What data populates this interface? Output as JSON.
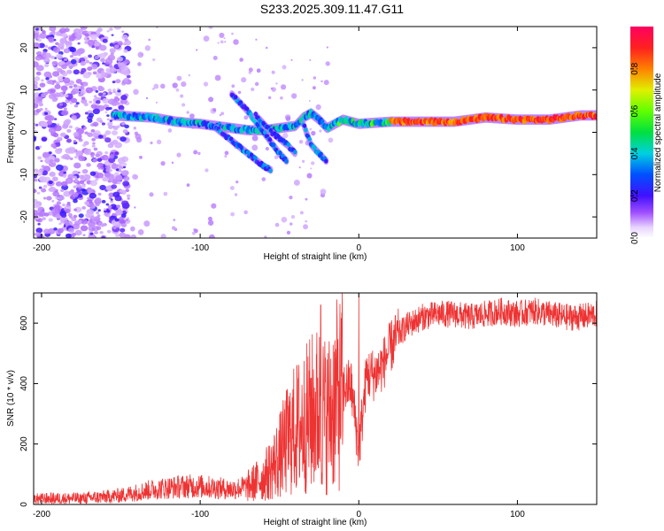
{
  "title": "S233.2025.309.11.47.G11",
  "chart_data": [
    {
      "type": "heatmap",
      "title": "S233.2025.309.11.47.G11",
      "xlabel": "Height of straight line (km)",
      "ylabel": "Frequency (Hz)",
      "xlim": [
        -205,
        150
      ],
      "ylim": [
        -25,
        25
      ],
      "xticks": [
        -200,
        -100,
        0,
        100
      ],
      "yticks": [
        -20,
        -10,
        0,
        10,
        20
      ],
      "colorbar": {
        "label": "Normalized spectral amplitude",
        "range": [
          0,
          1
        ],
        "ticks": [
          0.0,
          0.2,
          0.4,
          0.6,
          0.8
        ]
      },
      "ridges": [
        {
          "name": "main-tone",
          "points": [
            [
              -155,
              4
            ],
            [
              -130,
              3.5
            ],
            [
              -115,
              2.5
            ],
            [
              -100,
              2
            ],
            [
              -90,
              1.5
            ],
            [
              -80,
              1
            ],
            [
              -70,
              0.5
            ],
            [
              -60,
              0.5
            ],
            [
              -50,
              1
            ],
            [
              -40,
              1.5
            ],
            [
              -35,
              3.5
            ],
            [
              -30,
              4.5
            ],
            [
              -25,
              3
            ],
            [
              -20,
              1
            ],
            [
              -15,
              2
            ],
            [
              -10,
              3
            ],
            [
              0,
              2
            ],
            [
              20,
              2.5
            ],
            [
              40,
              2.5
            ],
            [
              60,
              2.5
            ],
            [
              80,
              3.5
            ],
            [
              100,
              3
            ],
            [
              120,
              3
            ],
            [
              140,
              4
            ],
            [
              150,
              4
            ]
          ]
        },
        {
          "name": "drift-1",
          "points": [
            [
              -90,
              1
            ],
            [
              -80,
              -2
            ],
            [
              -70,
              -5
            ],
            [
              -60,
              -8
            ],
            [
              -55,
              -9
            ]
          ]
        },
        {
          "name": "drift-2",
          "points": [
            [
              -80,
              9
            ],
            [
              -70,
              5
            ],
            [
              -60,
              0
            ],
            [
              -50,
              -5
            ],
            [
              -45,
              -7
            ]
          ]
        },
        {
          "name": "drift-3",
          "points": [
            [
              -65,
              4
            ],
            [
              -55,
              0
            ],
            [
              -45,
              -3
            ],
            [
              -40,
              -5
            ]
          ]
        },
        {
          "name": "drift-4",
          "points": [
            [
              -35,
              2
            ],
            [
              -30,
              -3
            ],
            [
              -25,
              -5
            ],
            [
              -20,
              -7
            ]
          ]
        }
      ]
    },
    {
      "type": "line",
      "xlabel": "Height of straight line (km)",
      "ylabel": "SNR (10 * v/v)",
      "xlim": [
        -205,
        150
      ],
      "ylim": [
        0,
        700
      ],
      "xticks": [
        -200,
        -100,
        0,
        100
      ],
      "yticks": [
        0,
        200,
        400,
        600
      ],
      "series": [
        {
          "name": "SNR",
          "color": "#ee3333",
          "x": [
            -205,
            -190,
            -175,
            -160,
            -150,
            -140,
            -130,
            -120,
            -110,
            -100,
            -90,
            -80,
            -70,
            -60,
            -55,
            -50,
            -45,
            -40,
            -35,
            -30,
            -25,
            -20,
            -15,
            -10,
            -5,
            0,
            5,
            10,
            15,
            20,
            25,
            30,
            40,
            50,
            60,
            70,
            80,
            90,
            100,
            110,
            120,
            130,
            140,
            150
          ],
          "y": [
            18,
            20,
            20,
            25,
            30,
            40,
            50,
            55,
            60,
            60,
            55,
            50,
            60,
            90,
            120,
            160,
            210,
            250,
            270,
            300,
            320,
            290,
            350,
            380,
            400,
            180,
            430,
            430,
            460,
            520,
            560,
            590,
            620,
            630,
            630,
            620,
            630,
            640,
            630,
            640,
            630,
            620,
            620,
            630
          ]
        }
      ],
      "peaks": [
        {
          "x": -24,
          "y": 660
        },
        {
          "x": 0,
          "y": 700
        }
      ]
    }
  ]
}
